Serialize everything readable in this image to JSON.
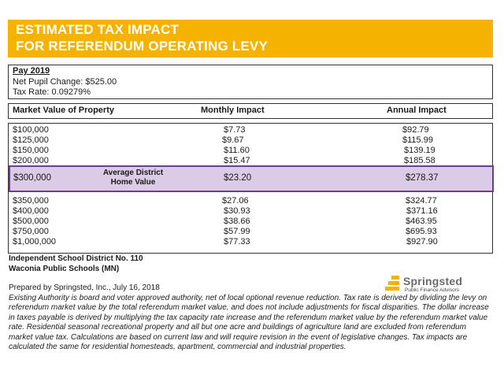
{
  "banner": {
    "line1": "ESTIMATED TAX IMPACT",
    "line2": "FOR REFERENDUM OPERATING LEVY",
    "color": "#f5b300"
  },
  "pay": {
    "title": "Pay 2019",
    "net_pupil_change": "Net Pupil Change: $525.00",
    "tax_rate": "Tax Rate: 0.09279%"
  },
  "table": {
    "headers": {
      "market_value": "Market Value of Property",
      "monthly": "Monthly Impact",
      "annual": "Annual Impact"
    },
    "rows": [
      {
        "value": "$100,000",
        "monthly": "$7.73",
        "annual": "$92.79"
      },
      {
        "value": "$125,000",
        "monthly": "$9.67",
        "annual": "$115.99"
      },
      {
        "value": "$150,000",
        "monthly": "$11.60",
        "annual": "$139.19"
      },
      {
        "value": "$200,000",
        "monthly": "$15.47",
        "annual": "$185.58"
      },
      {
        "value": "$300,000",
        "monthly": "$23.20",
        "annual": "$278.37",
        "label_line1": "Average District",
        "label_line2": "Home Value"
      },
      {
        "value": "$350,000",
        "monthly": "$27.06",
        "annual": "$324.77"
      },
      {
        "value": "$400,000",
        "monthly": "$30.93",
        "annual": "$371.16"
      },
      {
        "value": "$500,000",
        "monthly": "$38.66",
        "annual": "$463.95"
      },
      {
        "value": "$750,000",
        "monthly": "$57.99",
        "annual": "$695.93"
      },
      {
        "value": "$1,000,000",
        "monthly": "$77.33",
        "annual": "$927.90"
      }
    ],
    "highlight_color": "#dccbe6",
    "highlight_border": "#6e3d92"
  },
  "district": {
    "line1": "Independent School District No. 110",
    "line2": "Waconia Public Schools (MN)"
  },
  "prepared_by": "Prepared by Springsted, Inc., July 16, 2018",
  "disclaimer": "Existing Authority is board and voter approved authority, net of local optional revenue reduction. Tax rate is derived by dividing the levy on referendum market value by the total referendum market value, and does not include adjustments for fiscal disparities. The dollar increase in taxes payable is derived by multiplying the tax capacity rate increase and the referendum market value by the referendum market value rate. Residential seasonal recreational property and all but one acre and buildings of agriculture land are excluded from referendum market value tax. Calculations are based on current law and will require revision in the event of legislative changes. Tax impacts are calculated the same for residential homesteads, apartment, commercial and industrial properties.",
  "logo": {
    "name": "Springsted",
    "tagline": "Public Finance Advisors",
    "icon": "springsted-logo-mark",
    "color": "#f5b300"
  }
}
